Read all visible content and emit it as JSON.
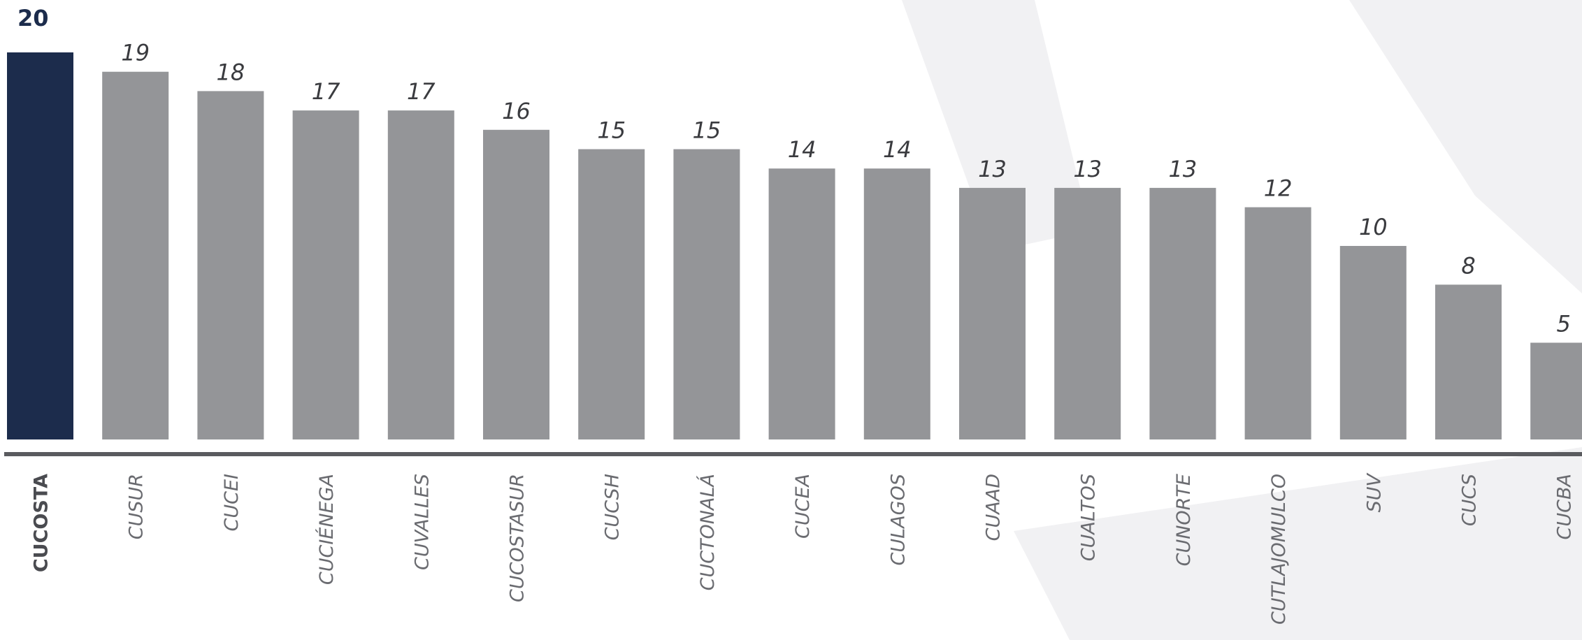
{
  "chart_data": {
    "type": "bar",
    "title": "",
    "xlabel": "",
    "ylabel": "",
    "ylim": [
      0,
      20
    ],
    "grid": false,
    "legend": "none",
    "categories": [
      "CUCOSTA",
      "CUSUR",
      "CUCEI",
      "CUCIÉNEGA",
      "CUVALLES",
      "CUCOSTASUR",
      "CUCSH",
      "CUCTONALÁ",
      "CUCEA",
      "CULAGOS",
      "CUAAD",
      "CUALTOS",
      "CUNORTE",
      "CUTLAJOMULCO",
      "SUV",
      "CUCS",
      "CUCBA"
    ],
    "values": [
      20,
      19,
      18,
      17,
      17,
      16,
      15,
      15,
      14,
      14,
      13,
      13,
      13,
      12,
      10,
      8,
      5
    ],
    "value_labels": [
      "20",
      "19",
      "18",
      "17",
      "17",
      "16",
      "15",
      "15",
      "14",
      "14",
      "13",
      "13",
      "13",
      "12",
      "10",
      "8",
      "5"
    ],
    "highlight_index": 0,
    "colors": {
      "highlight": "#1c2c4c",
      "bar": "#949598",
      "baseline": "#5a5b5f"
    }
  }
}
